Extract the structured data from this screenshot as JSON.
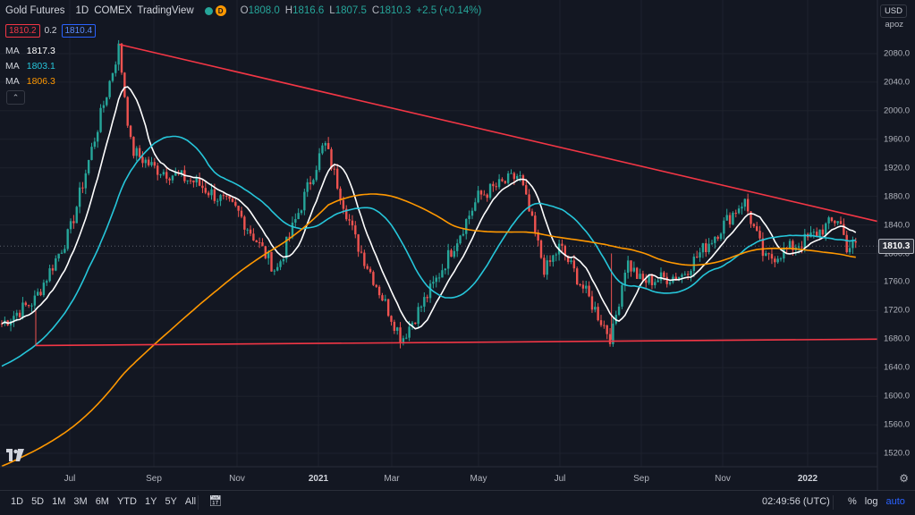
{
  "header": {
    "symbol": "Gold Futures",
    "interval": "1D",
    "exchange": "COMEX",
    "source": "TradingView",
    "market_status_badge": "D",
    "open_label": "O",
    "open": "1808.0",
    "high_label": "H",
    "high": "1816.6",
    "low_label": "L",
    "low": "1807.5",
    "close_label": "C",
    "close": "1810.3",
    "change": "+2.5 (+0.14%)",
    "sell_price": "1810.2",
    "spread": "0.2",
    "buy_price": "1810.4"
  },
  "indicators": [
    {
      "name": "MA",
      "value": "1817.3",
      "color": "#ffffff"
    },
    {
      "name": "MA",
      "value": "1803.1",
      "color": "#26c6da"
    },
    {
      "name": "MA",
      "value": "1806.3",
      "color": "#ff9800"
    }
  ],
  "price_scale": {
    "currency": "USD",
    "scale_name": "apoz",
    "last_price": "1810.3",
    "ticks": [
      "2080.0",
      "2040.0",
      "2000.0",
      "1960.0",
      "1920.0",
      "1880.0",
      "1840.0",
      "1800.0",
      "1760.0",
      "1720.0",
      "1680.0",
      "1640.0",
      "1600.0",
      "1560.0",
      "1520.0"
    ]
  },
  "time_axis": {
    "labels": [
      {
        "text": "Jul",
        "bold": false
      },
      {
        "text": "Sep",
        "bold": false
      },
      {
        "text": "Nov",
        "bold": false
      },
      {
        "text": "2021",
        "bold": true
      },
      {
        "text": "Mar",
        "bold": false
      },
      {
        "text": "May",
        "bold": false
      },
      {
        "text": "Jul",
        "bold": false
      },
      {
        "text": "Sep",
        "bold": false
      },
      {
        "text": "Nov",
        "bold": false
      },
      {
        "text": "2022",
        "bold": true
      }
    ]
  },
  "bottom_bar": {
    "ranges": [
      "1D",
      "5D",
      "1M",
      "3M",
      "6M",
      "YTD",
      "1Y",
      "5Y",
      "All"
    ],
    "time": "02:49:56 (UTC)",
    "percent": "%",
    "log": "log",
    "auto": "auto"
  },
  "colors": {
    "background": "#131722",
    "up": "#26a69a",
    "down": "#ef5350",
    "trendline": "#f23645"
  },
  "chart_data": {
    "type": "candlestick",
    "symbol": "Gold Futures",
    "interval": "1D",
    "ylim": [
      1500,
      2110
    ],
    "key_points": [
      {
        "x": "2020-05",
        "y": 1700
      },
      {
        "x": "2020-06",
        "y": 1735
      },
      {
        "x": "2020-07",
        "y": 1830
      },
      {
        "x": "2020-08-06",
        "y": 2089
      },
      {
        "x": "2020-08-15",
        "y": 1945
      },
      {
        "x": "2020-09",
        "y": 1920
      },
      {
        "x": "2020-10",
        "y": 1900
      },
      {
        "x": "2020-11",
        "y": 1860
      },
      {
        "x": "2020-11-30",
        "y": 1775
      },
      {
        "x": "2021-01-06",
        "y": 1955
      },
      {
        "x": "2021-02",
        "y": 1820
      },
      {
        "x": "2021-03-08",
        "y": 1680
      },
      {
        "x": "2021-04",
        "y": 1760
      },
      {
        "x": "2021-05",
        "y": 1880
      },
      {
        "x": "2021-06-01",
        "y": 1910
      },
      {
        "x": "2021-06-20",
        "y": 1775
      },
      {
        "x": "2021-07",
        "y": 1810
      },
      {
        "x": "2021-08-09",
        "y": 1680
      },
      {
        "x": "2021-08-20",
        "y": 1790
      },
      {
        "x": "2021-09",
        "y": 1760
      },
      {
        "x": "2021-10",
        "y": 1770
      },
      {
        "x": "2021-11-16",
        "y": 1875
      },
      {
        "x": "2021-12",
        "y": 1790
      },
      {
        "x": "2022-01",
        "y": 1820
      },
      {
        "x": "2022-01-25",
        "y": 1850
      },
      {
        "x": "2022-02",
        "y": 1810
      }
    ],
    "trendlines": [
      {
        "name": "upper",
        "from": {
          "x": "2020-08-06",
          "y": 2093
        },
        "to": {
          "x": "2022-02-28",
          "y": 1845
        }
      },
      {
        "name": "lower",
        "from": {
          "x": "2020-05",
          "y": 1671
        },
        "to": {
          "x": "2022-02-28",
          "y": 1680
        }
      }
    ]
  }
}
